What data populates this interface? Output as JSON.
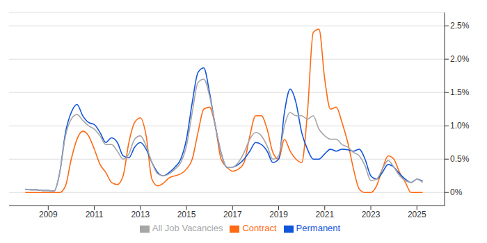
{
  "chart_data": {
    "type": "line",
    "x": [
      2008,
      2008.25,
      2008.5,
      2008.75,
      2009,
      2009.25,
      2009.5,
      2009.75,
      2010,
      2010.25,
      2010.5,
      2010.75,
      2011,
      2011.25,
      2011.5,
      2011.75,
      2012,
      2012.25,
      2012.5,
      2012.75,
      2013,
      2013.25,
      2013.5,
      2013.75,
      2014,
      2014.25,
      2014.5,
      2014.75,
      2015,
      2015.25,
      2015.5,
      2015.75,
      2016,
      2016.25,
      2016.5,
      2016.75,
      2017,
      2017.25,
      2017.5,
      2017.75,
      2018,
      2018.25,
      2018.5,
      2018.75,
      2019,
      2019.25,
      2019.5,
      2019.75,
      2020,
      2020.25,
      2020.5,
      2020.75,
      2021,
      2021.25,
      2021.5,
      2021.75,
      2022,
      2022.25,
      2022.5,
      2022.75,
      2023,
      2023.25,
      2023.5,
      2023.75,
      2024,
      2024.25,
      2024.5,
      2024.75,
      2025,
      2025.25
    ],
    "series": [
      {
        "name": "Contract",
        "color": "#ff6a13",
        "values": [
          0,
          0,
          0,
          0,
          0,
          0,
          0,
          0.1,
          0.5,
          0.8,
          0.92,
          0.85,
          0.65,
          0.42,
          0.3,
          0.15,
          0.12,
          0.25,
          0.75,
          1.05,
          1.12,
          0.85,
          0.2,
          0.1,
          0.14,
          0.22,
          0.25,
          0.28,
          0.35,
          0.5,
          0.9,
          1.25,
          1.28,
          1.0,
          0.5,
          0.38,
          0.32,
          0.35,
          0.45,
          0.85,
          1.15,
          1.15,
          0.95,
          0.6,
          0.5,
          0.8,
          0.62,
          0.5,
          0.45,
          1.2,
          2.4,
          2.45,
          1.7,
          1.25,
          1.28,
          1.05,
          0.75,
          0.35,
          0.05,
          0,
          0,
          0.1,
          0.35,
          0.55,
          0.5,
          0.3,
          0.15,
          0,
          0,
          0
        ]
      },
      {
        "name": "Permanent",
        "color": "#1155dd",
        "values": [
          0.05,
          0.04,
          0.04,
          0.03,
          0.03,
          0.02,
          0.3,
          0.9,
          1.2,
          1.32,
          1.15,
          1.05,
          1.02,
          0.9,
          0.75,
          0.82,
          0.75,
          0.55,
          0.52,
          0.68,
          0.75,
          0.65,
          0.45,
          0.3,
          0.25,
          0.3,
          0.38,
          0.5,
          0.8,
          1.35,
          1.8,
          1.87,
          1.5,
          1.0,
          0.6,
          0.38,
          0.38,
          0.42,
          0.5,
          0.62,
          0.75,
          0.72,
          0.62,
          0.45,
          0.5,
          1.2,
          1.55,
          1.35,
          0.9,
          0.65,
          0.5,
          0.5,
          0.58,
          0.65,
          0.62,
          0.65,
          0.64,
          0.62,
          0.65,
          0.5,
          0.25,
          0.2,
          0.3,
          0.42,
          0.38,
          0.28,
          0.2,
          0.15,
          0.2,
          0.17
        ]
      },
      {
        "name": "All Job Vacancies",
        "color": "#a6a6a6",
        "values": [
          0.05,
          0.04,
          0.04,
          0.03,
          0.03,
          0.02,
          0.3,
          0.85,
          1.1,
          1.17,
          1.08,
          1.0,
          0.95,
          0.85,
          0.72,
          0.72,
          0.62,
          0.5,
          0.58,
          0.8,
          0.85,
          0.7,
          0.45,
          0.28,
          0.25,
          0.28,
          0.35,
          0.45,
          0.7,
          1.2,
          1.65,
          1.7,
          1.45,
          1.0,
          0.6,
          0.38,
          0.38,
          0.45,
          0.6,
          0.8,
          0.9,
          0.85,
          0.7,
          0.5,
          0.55,
          1.0,
          1.2,
          1.15,
          1.15,
          1.1,
          1.15,
          0.95,
          0.85,
          0.8,
          0.8,
          0.72,
          0.68,
          0.6,
          0.55,
          0.4,
          0.18,
          0.2,
          0.35,
          0.48,
          0.38,
          0.25,
          0.18,
          0.15,
          0.2,
          0.15
        ]
      }
    ],
    "xlim": [
      2007.3,
      2026.2
    ],
    "xticks": [
      2009,
      2011,
      2013,
      2015,
      2017,
      2019,
      2021,
      2023,
      2025
    ],
    "ylim": [
      -0.2,
      2.7
    ],
    "yticks": [
      {
        "value": 0,
        "label": "0%"
      },
      {
        "value": 0.5,
        "label": "0.5%"
      },
      {
        "value": 1,
        "label": "1.0%"
      },
      {
        "value": 1.5,
        "label": "1.5%"
      },
      {
        "value": 2,
        "label": "2.0%"
      },
      {
        "value": 2.5,
        "label": "2.5%"
      }
    ],
    "grid": true,
    "legend": "bottom"
  }
}
